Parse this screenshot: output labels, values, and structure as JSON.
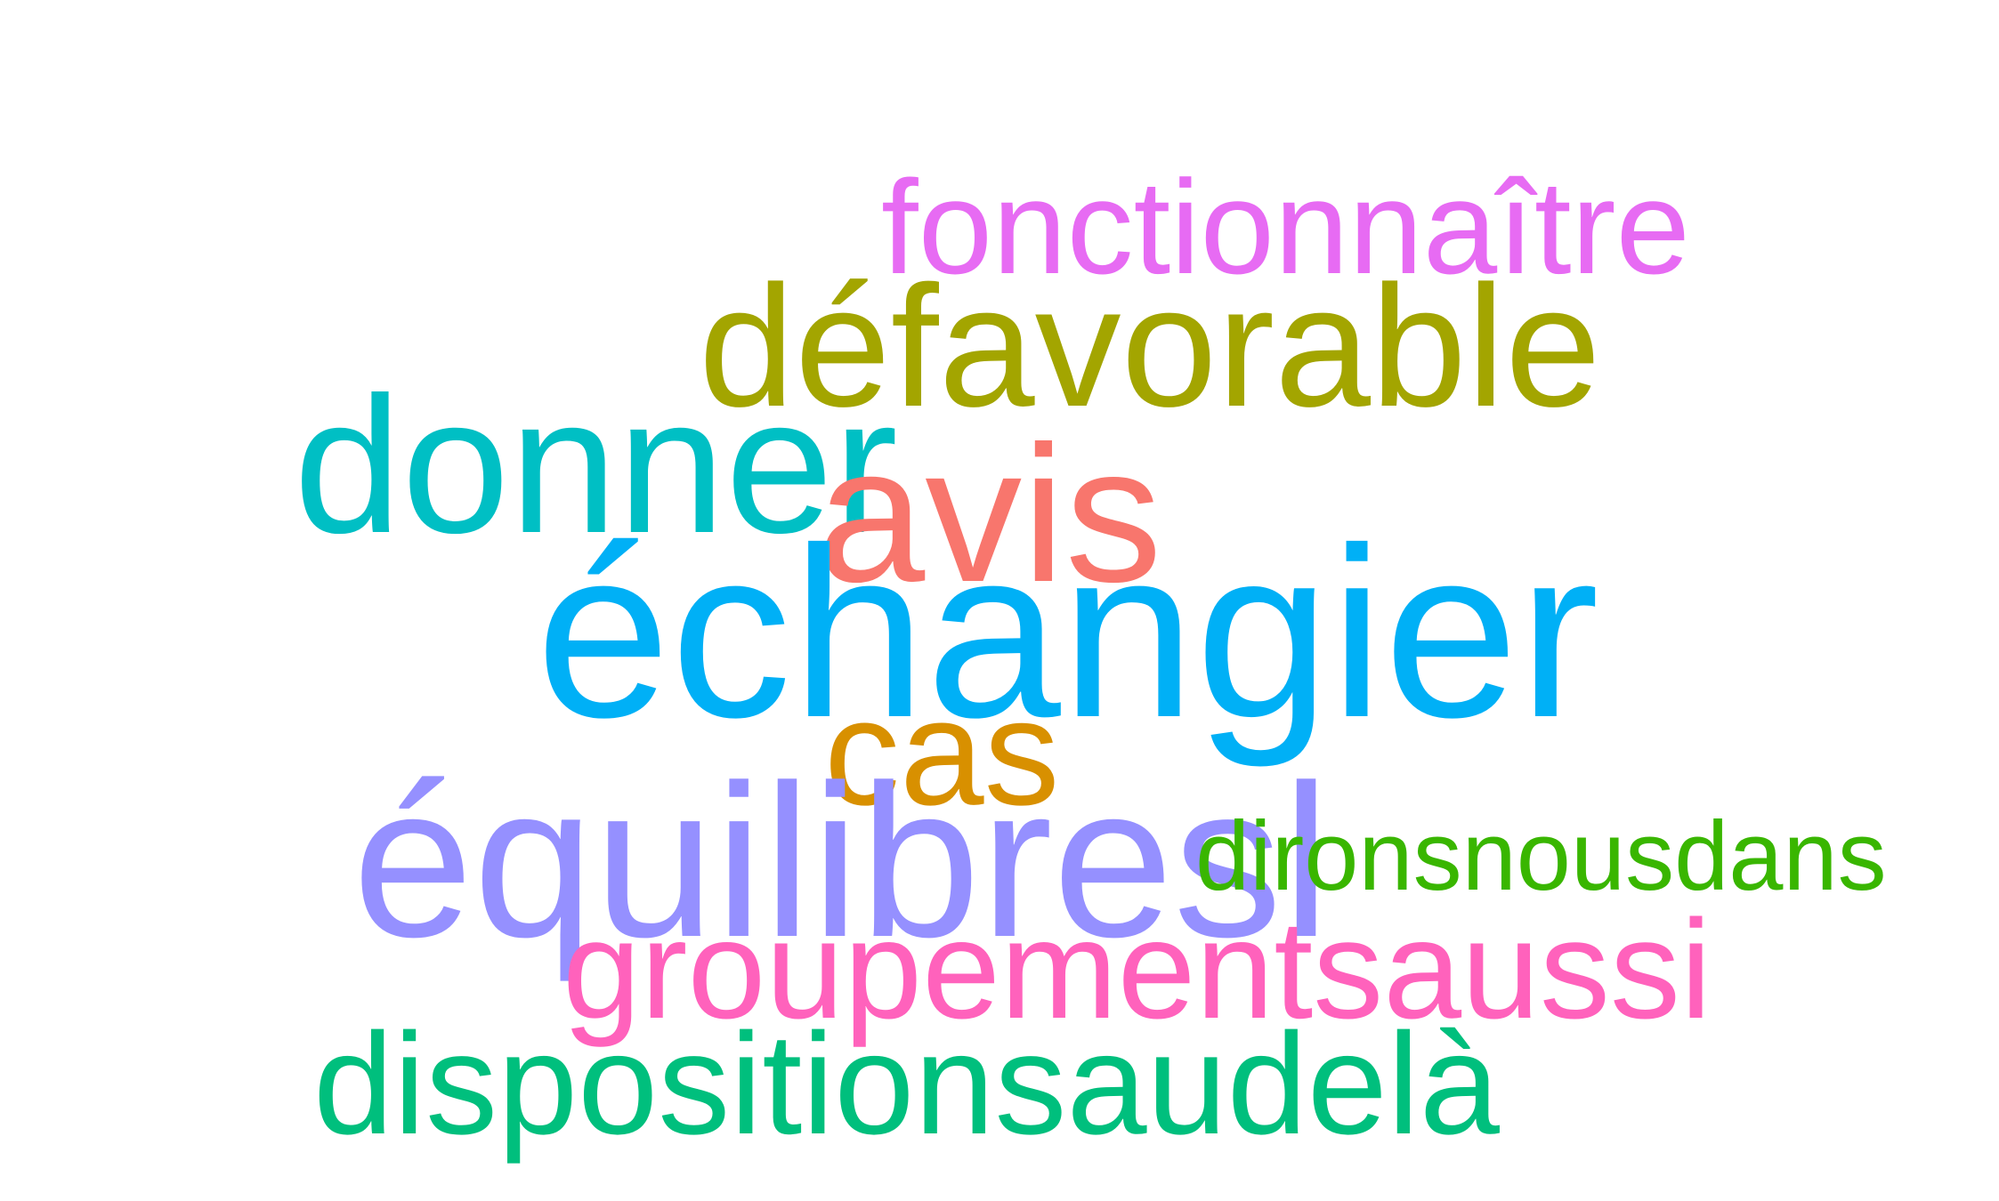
{
  "words": [
    {
      "text": "fonctionnaître",
      "color": "#E76BF3"
    },
    {
      "text": "défavorable",
      "color": "#A3A500"
    },
    {
      "text": "donner",
      "color": "#00BFC4"
    },
    {
      "text": "avis",
      "color": "#F8766D"
    },
    {
      "text": "échangier",
      "color": "#00B0F6"
    },
    {
      "text": "cas",
      "color": "#D89000"
    },
    {
      "text": "équilibresl",
      "color": "#9590FF"
    },
    {
      "text": "dironsnousdans",
      "color": "#39B600"
    },
    {
      "text": "groupementsaussi",
      "color": "#FF62BC"
    },
    {
      "text": "dispositionsaudelà",
      "color": "#00BF7D"
    }
  ]
}
